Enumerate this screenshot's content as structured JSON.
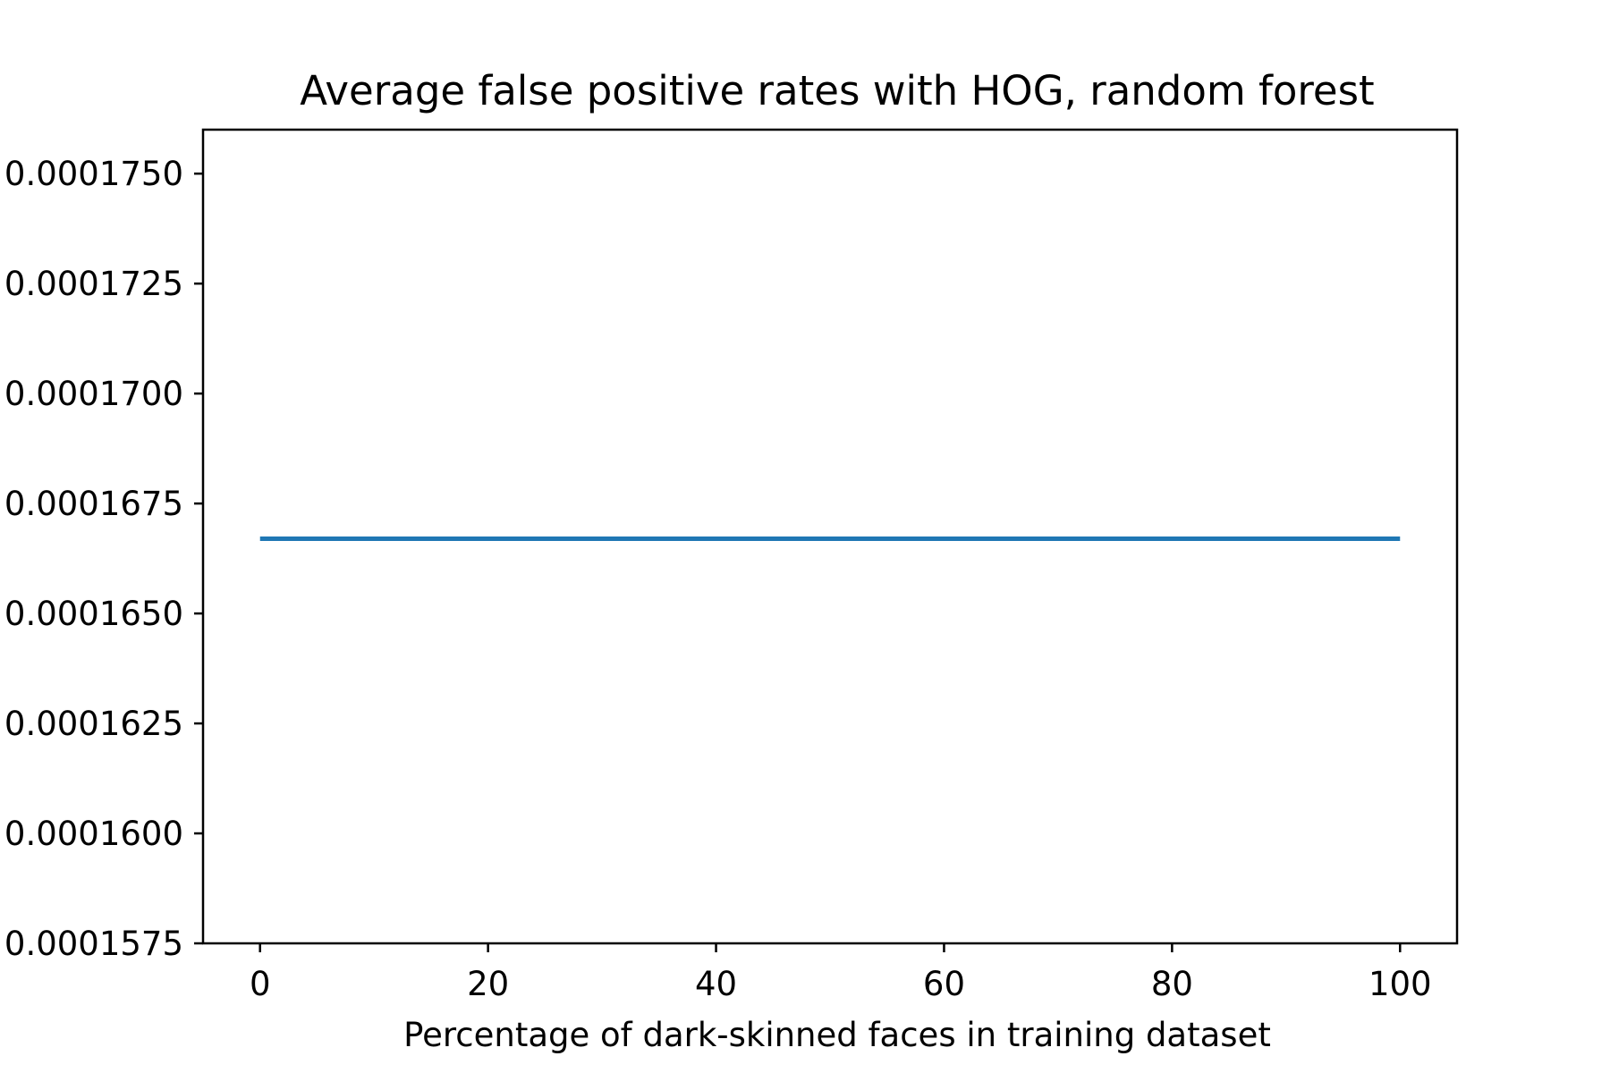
{
  "chart_data": {
    "type": "line",
    "title": "Average false positive rates with HOG, random forest",
    "xlabel": "Percentage of dark-skinned faces in training dataset",
    "ylabel": "",
    "xlim": [
      -5,
      105
    ],
    "ylim": [
      0.0001575,
      0.000176
    ],
    "x_ticks": [
      0,
      20,
      40,
      60,
      80,
      100
    ],
    "x_tick_labels": [
      "0",
      "20",
      "40",
      "60",
      "80",
      "100"
    ],
    "y_ticks": [
      0.0001575,
      0.00016,
      0.0001625,
      0.000165,
      0.0001675,
      0.00017,
      0.0001725,
      0.000175
    ],
    "y_tick_labels": [
      "0.0001575",
      "0.0001600",
      "0.0001625",
      "0.0001650",
      "0.0001675",
      "0.0001700",
      "0.0001725",
      "0.0001750"
    ],
    "grid": false,
    "series": [
      {
        "color": "#1f77b4",
        "x": [
          0,
          10,
          20,
          30,
          40,
          50,
          60,
          70,
          80,
          90,
          100
        ],
        "y": [
          0.0001667,
          0.0001667,
          0.0001667,
          0.0001667,
          0.0001667,
          0.0001667,
          0.0001667,
          0.0001667,
          0.0001667,
          0.0001667,
          0.0001667
        ]
      }
    ]
  }
}
